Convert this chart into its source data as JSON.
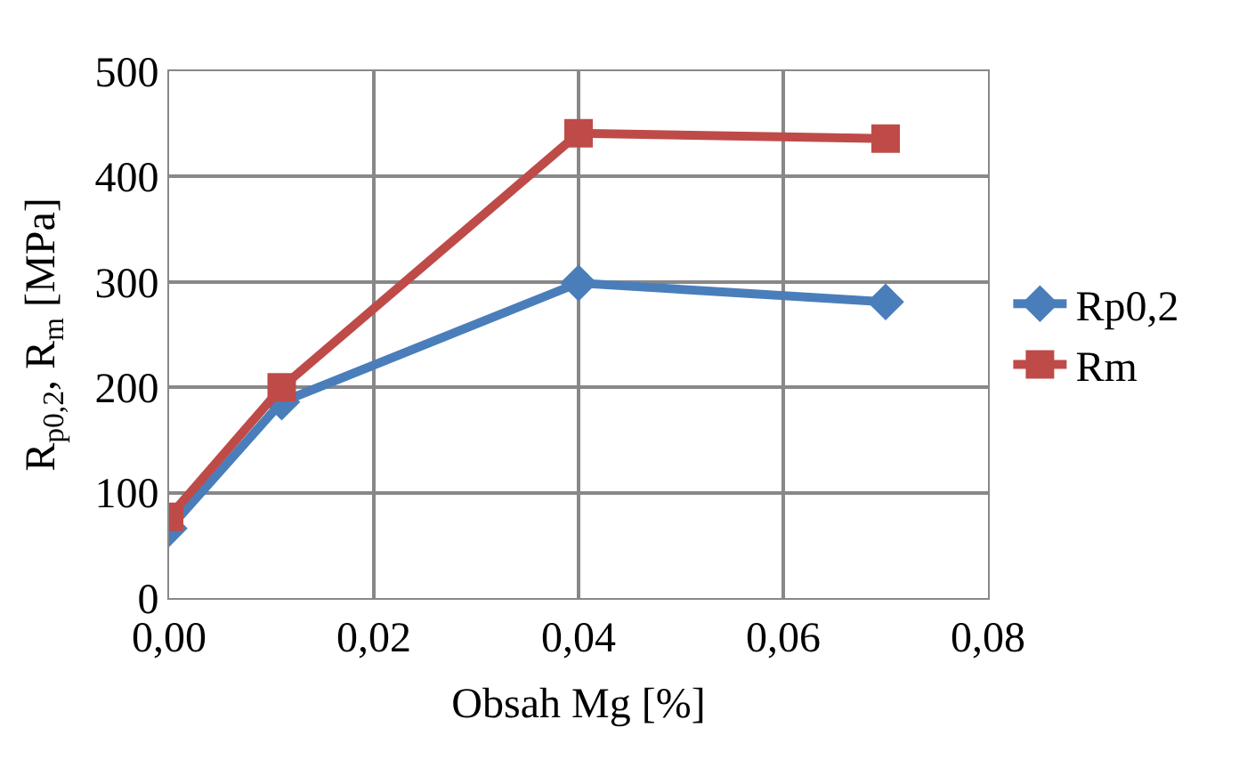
{
  "chart_data": {
    "type": "line",
    "xlabel": "Obsah Mg [%]",
    "ylabel": "R$_{p0,2}$, R$_{m}$ [MPa]",
    "x": [
      0,
      0.011,
      0.04,
      0.07
    ],
    "series": [
      {
        "name": "Rp0,2",
        "color": "#4a7ebb",
        "marker": "diamond",
        "values": [
          66,
          186,
          299,
          281
        ]
      },
      {
        "name": "Rm",
        "color": "#be4b48",
        "marker": "square",
        "values": [
          77,
          200,
          441,
          436
        ]
      }
    ],
    "xlim": [
      0,
      0.08
    ],
    "xticks": [
      {
        "value": 0,
        "label": "0,00"
      },
      {
        "value": 0.02,
        "label": "0,02"
      },
      {
        "value": 0.04,
        "label": "0,04"
      },
      {
        "value": 0.06,
        "label": "0,06"
      },
      {
        "value": 0.08,
        "label": "0,08"
      }
    ],
    "ylim": [
      0,
      500
    ],
    "yticks": [
      0,
      100,
      200,
      300,
      400,
      500
    ],
    "grid": true,
    "legend": "right",
    "line_style": "solid"
  }
}
